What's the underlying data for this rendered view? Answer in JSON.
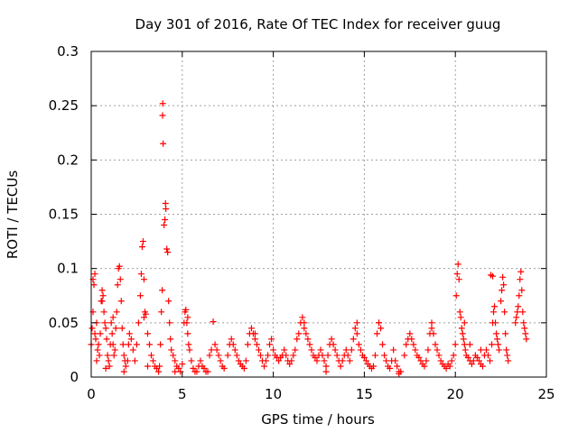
{
  "chart_data": {
    "type": "scatter",
    "title": "Day 301 of 2016, Rate Of TEC Index for receiver guug",
    "xlabel": "GPS time / hours",
    "ylabel": "ROTI / TECUs",
    "xlim": [
      0,
      25
    ],
    "ylim": [
      0,
      0.3
    ],
    "x_ticks": [
      0,
      5,
      10,
      15,
      20,
      25
    ],
    "x_tick_labels": [
      "0",
      "5",
      "10",
      "15",
      "20",
      "25"
    ],
    "y_ticks": [
      0,
      0.05,
      0.1,
      0.15,
      0.2,
      0.25,
      0.3
    ],
    "y_tick_labels": [
      "0",
      "0.05",
      "0.1",
      "0.15",
      "0.2",
      "0.25",
      "0.3"
    ],
    "grid": true,
    "marker": "+",
    "colors": {
      "marker": "#ff0000",
      "grid": "#a0a0a0",
      "axis": "#000000"
    },
    "series": [
      {
        "name": "ROTI",
        "points": [
          [
            0.0,
            0.03
          ],
          [
            0.05,
            0.045
          ],
          [
            0.1,
            0.06
          ],
          [
            0.1,
            0.09
          ],
          [
            0.15,
            0.085
          ],
          [
            0.2,
            0.095
          ],
          [
            0.2,
            0.04
          ],
          [
            0.25,
            0.035
          ],
          [
            0.3,
            0.05
          ],
          [
            0.35,
            0.025
          ],
          [
            0.4,
            0.03
          ],
          [
            0.45,
            0.02
          ],
          [
            0.5,
            0.04
          ],
          [
            0.55,
            0.07
          ],
          [
            0.6,
            0.08
          ],
          [
            0.65,
            0.075
          ],
          [
            0.7,
            0.06
          ],
          [
            0.75,
            0.05
          ],
          [
            0.8,
            0.045
          ],
          [
            0.85,
            0.035
          ],
          [
            0.9,
            0.02
          ],
          [
            0.95,
            0.015
          ],
          [
            1.0,
            0.01
          ],
          [
            1.05,
            0.03
          ],
          [
            1.1,
            0.05
          ],
          [
            1.15,
            0.04
          ],
          [
            1.2,
            0.03
          ],
          [
            1.25,
            0.02
          ],
          [
            1.3,
            0.025
          ],
          [
            1.35,
            0.045
          ],
          [
            1.4,
            0.06
          ],
          [
            1.45,
            0.085
          ],
          [
            1.5,
            0.1
          ],
          [
            1.55,
            0.102
          ],
          [
            1.6,
            0.09
          ],
          [
            1.65,
            0.07
          ],
          [
            1.7,
            0.045
          ],
          [
            1.75,
            0.03
          ],
          [
            1.8,
            0.02
          ],
          [
            1.85,
            0.015
          ],
          [
            1.9,
            0.01
          ],
          [
            2.0,
            0.015
          ],
          [
            2.05,
            0.03
          ],
          [
            2.1,
            0.04
          ],
          [
            2.2,
            0.035
          ],
          [
            2.3,
            0.025
          ],
          [
            2.4,
            0.015
          ],
          [
            2.5,
            0.03
          ],
          [
            2.6,
            0.05
          ],
          [
            2.7,
            0.075
          ],
          [
            2.75,
            0.095
          ],
          [
            2.8,
            0.12
          ],
          [
            2.85,
            0.125
          ],
          [
            2.9,
            0.09
          ],
          [
            2.95,
            0.06
          ],
          [
            3.0,
            0.058
          ],
          [
            3.1,
            0.04
          ],
          [
            3.2,
            0.03
          ],
          [
            3.3,
            0.02
          ],
          [
            3.4,
            0.015
          ],
          [
            3.5,
            0.01
          ],
          [
            3.6,
            0.008
          ],
          [
            3.7,
            0.005
          ],
          [
            3.75,
            0.01
          ],
          [
            3.8,
            0.03
          ],
          [
            3.85,
            0.06
          ],
          [
            3.9,
            0.08
          ],
          [
            3.92,
            0.241
          ],
          [
            3.93,
            0.252
          ],
          [
            3.95,
            0.215
          ],
          [
            4.0,
            0.14
          ],
          [
            4.05,
            0.145
          ],
          [
            4.08,
            0.16
          ],
          [
            4.1,
            0.155
          ],
          [
            4.15,
            0.118
          ],
          [
            4.2,
            0.115
          ],
          [
            4.25,
            0.07
          ],
          [
            4.3,
            0.05
          ],
          [
            4.35,
            0.035
          ],
          [
            4.4,
            0.025
          ],
          [
            4.5,
            0.02
          ],
          [
            4.6,
            0.015
          ],
          [
            4.7,
            0.01
          ],
          [
            4.8,
            0.008
          ],
          [
            4.9,
            0.005
          ],
          [
            5.0,
            0.012
          ],
          [
            5.1,
            0.05
          ],
          [
            5.15,
            0.06
          ],
          [
            5.2,
            0.062
          ],
          [
            5.25,
            0.05
          ],
          [
            5.3,
            0.04
          ],
          [
            5.35,
            0.03
          ],
          [
            5.4,
            0.025
          ],
          [
            5.5,
            0.015
          ],
          [
            5.6,
            0.008
          ],
          [
            5.7,
            0.005
          ],
          [
            5.8,
            0.005
          ],
          [
            5.9,
            0.01
          ],
          [
            6.0,
            0.015
          ],
          [
            6.1,
            0.01
          ],
          [
            6.2,
            0.008
          ],
          [
            6.3,
            0.005
          ],
          [
            6.5,
            0.02
          ],
          [
            6.6,
            0.025
          ],
          [
            6.7,
            0.051
          ],
          [
            6.8,
            0.03
          ],
          [
            6.9,
            0.025
          ],
          [
            7.0,
            0.02
          ],
          [
            7.1,
            0.015
          ],
          [
            7.2,
            0.01
          ],
          [
            7.3,
            0.008
          ],
          [
            7.5,
            0.02
          ],
          [
            7.6,
            0.03
          ],
          [
            7.7,
            0.035
          ],
          [
            7.8,
            0.03
          ],
          [
            7.9,
            0.025
          ],
          [
            8.0,
            0.02
          ],
          [
            8.1,
            0.015
          ],
          [
            8.2,
            0.012
          ],
          [
            8.3,
            0.01
          ],
          [
            8.4,
            0.008
          ],
          [
            8.5,
            0.015
          ],
          [
            8.6,
            0.03
          ],
          [
            8.7,
            0.04
          ],
          [
            8.8,
            0.045
          ],
          [
            8.9,
            0.04
          ],
          [
            9.0,
            0.035
          ],
          [
            9.1,
            0.03
          ],
          [
            9.2,
            0.025
          ],
          [
            9.3,
            0.02
          ],
          [
            9.4,
            0.015
          ],
          [
            9.5,
            0.01
          ],
          [
            9.6,
            0.015
          ],
          [
            9.7,
            0.02
          ],
          [
            9.8,
            0.03
          ],
          [
            9.9,
            0.035
          ],
          [
            10.0,
            0.025
          ],
          [
            10.1,
            0.02
          ],
          [
            10.2,
            0.018
          ],
          [
            10.3,
            0.015
          ],
          [
            10.4,
            0.018
          ],
          [
            10.5,
            0.02
          ],
          [
            10.6,
            0.025
          ],
          [
            10.7,
            0.02
          ],
          [
            10.8,
            0.015
          ],
          [
            10.9,
            0.012
          ],
          [
            11.0,
            0.015
          ],
          [
            11.1,
            0.02
          ],
          [
            11.2,
            0.025
          ],
          [
            11.3,
            0.035
          ],
          [
            11.4,
            0.04
          ],
          [
            11.5,
            0.05
          ],
          [
            11.6,
            0.055
          ],
          [
            11.7,
            0.045
          ],
          [
            11.8,
            0.04
          ],
          [
            11.9,
            0.035
          ],
          [
            12.0,
            0.03
          ],
          [
            12.1,
            0.025
          ],
          [
            12.2,
            0.02
          ],
          [
            12.3,
            0.018
          ],
          [
            12.4,
            0.015
          ],
          [
            12.5,
            0.02
          ],
          [
            12.6,
            0.025
          ],
          [
            12.7,
            0.02
          ],
          [
            12.8,
            0.015
          ],
          [
            12.9,
            0.01
          ],
          [
            13.0,
            0.02
          ],
          [
            13.1,
            0.03
          ],
          [
            13.2,
            0.035
          ],
          [
            13.3,
            0.03
          ],
          [
            13.4,
            0.025
          ],
          [
            13.5,
            0.02
          ],
          [
            13.6,
            0.015
          ],
          [
            13.7,
            0.01
          ],
          [
            13.8,
            0.015
          ],
          [
            13.9,
            0.02
          ],
          [
            14.0,
            0.025
          ],
          [
            14.1,
            0.02
          ],
          [
            14.2,
            0.015
          ],
          [
            14.3,
            0.025
          ],
          [
            14.4,
            0.035
          ],
          [
            14.5,
            0.045
          ],
          [
            14.6,
            0.04
          ],
          [
            14.7,
            0.03
          ],
          [
            14.8,
            0.025
          ],
          [
            14.9,
            0.02
          ],
          [
            15.0,
            0.018
          ],
          [
            15.1,
            0.015
          ],
          [
            15.2,
            0.012
          ],
          [
            15.3,
            0.01
          ],
          [
            15.4,
            0.008
          ],
          [
            15.5,
            0.01
          ],
          [
            15.6,
            0.02
          ],
          [
            15.7,
            0.04
          ],
          [
            15.8,
            0.05
          ],
          [
            15.9,
            0.045
          ],
          [
            16.0,
            0.03
          ],
          [
            16.1,
            0.02
          ],
          [
            16.2,
            0.015
          ],
          [
            16.3,
            0.01
          ],
          [
            16.4,
            0.008
          ],
          [
            16.5,
            0.015
          ],
          [
            16.6,
            0.025
          ],
          [
            16.7,
            0.015
          ],
          [
            16.8,
            0.01
          ],
          [
            16.9,
            0.005
          ],
          [
            17.0,
            0.005
          ],
          [
            17.2,
            0.02
          ],
          [
            17.3,
            0.03
          ],
          [
            17.4,
            0.035
          ],
          [
            17.5,
            0.04
          ],
          [
            17.6,
            0.035
          ],
          [
            17.7,
            0.03
          ],
          [
            17.8,
            0.025
          ],
          [
            17.9,
            0.02
          ],
          [
            18.0,
            0.018
          ],
          [
            18.1,
            0.015
          ],
          [
            18.2,
            0.012
          ],
          [
            18.3,
            0.01
          ],
          [
            18.4,
            0.015
          ],
          [
            18.5,
            0.025
          ],
          [
            18.6,
            0.04
          ],
          [
            18.7,
            0.05
          ],
          [
            18.8,
            0.04
          ],
          [
            18.9,
            0.03
          ],
          [
            19.0,
            0.025
          ],
          [
            19.1,
            0.02
          ],
          [
            19.2,
            0.015
          ],
          [
            19.3,
            0.012
          ],
          [
            19.4,
            0.01
          ],
          [
            19.5,
            0.008
          ],
          [
            19.6,
            0.012
          ],
          [
            19.7,
            0.01
          ],
          [
            19.8,
            0.015
          ],
          [
            19.9,
            0.02
          ],
          [
            20.0,
            0.03
          ],
          [
            20.05,
            0.075
          ],
          [
            20.1,
            0.095
          ],
          [
            20.15,
            0.104
          ],
          [
            20.2,
            0.09
          ],
          [
            20.25,
            0.06
          ],
          [
            20.3,
            0.055
          ],
          [
            20.35,
            0.045
          ],
          [
            20.4,
            0.04
          ],
          [
            20.45,
            0.035
          ],
          [
            20.5,
            0.03
          ],
          [
            20.55,
            0.025
          ],
          [
            20.6,
            0.02
          ],
          [
            20.7,
            0.018
          ],
          [
            20.8,
            0.015
          ],
          [
            20.9,
            0.012
          ],
          [
            21.0,
            0.015
          ],
          [
            21.1,
            0.02
          ],
          [
            21.2,
            0.018
          ],
          [
            21.3,
            0.015
          ],
          [
            21.4,
            0.012
          ],
          [
            21.5,
            0.01
          ],
          [
            21.6,
            0.02
          ],
          [
            21.7,
            0.025
          ],
          [
            21.8,
            0.02
          ],
          [
            21.9,
            0.015
          ],
          [
            22.0,
            0.03
          ],
          [
            22.05,
            0.05
          ],
          [
            22.1,
            0.06
          ],
          [
            22.15,
            0.065
          ],
          [
            22.2,
            0.05
          ],
          [
            22.25,
            0.04
          ],
          [
            22.3,
            0.035
          ],
          [
            22.35,
            0.03
          ],
          [
            22.4,
            0.025
          ],
          [
            22.5,
            0.07
          ],
          [
            22.55,
            0.08
          ],
          [
            22.6,
            0.092
          ],
          [
            22.65,
            0.085
          ],
          [
            22.7,
            0.06
          ],
          [
            22.75,
            0.04
          ],
          [
            22.8,
            0.025
          ],
          [
            22.85,
            0.02
          ],
          [
            22.9,
            0.015
          ],
          [
            23.3,
            0.05
          ],
          [
            23.35,
            0.055
          ],
          [
            23.4,
            0.06
          ],
          [
            23.45,
            0.065
          ],
          [
            23.5,
            0.075
          ],
          [
            23.55,
            0.09
          ],
          [
            23.6,
            0.097
          ],
          [
            23.65,
            0.08
          ],
          [
            23.7,
            0.06
          ],
          [
            23.75,
            0.05
          ],
          [
            23.8,
            0.045
          ],
          [
            23.85,
            0.04
          ],
          [
            23.9,
            0.035
          ],
          [
            21.95,
            0.094
          ],
          [
            22.05,
            0.093
          ],
          [
            1.2,
            0.055
          ],
          [
            0.6,
            0.07
          ],
          [
            2.9,
            0.055
          ],
          [
            5.3,
            0.055
          ],
          [
            9.0,
            0.04
          ],
          [
            11.7,
            0.05
          ],
          [
            14.6,
            0.05
          ],
          [
            15.8,
            0.05
          ],
          [
            18.7,
            0.045
          ],
          [
            20.5,
            0.05
          ],
          [
            20.8,
            0.03
          ],
          [
            21.4,
            0.025
          ],
          [
            0.3,
            0.015
          ],
          [
            0.8,
            0.008
          ],
          [
            1.8,
            0.005
          ],
          [
            3.1,
            0.01
          ],
          [
            4.6,
            0.005
          ],
          [
            6.4,
            0.005
          ],
          [
            12.9,
            0.005
          ],
          [
            16.9,
            0.003
          ]
        ]
      }
    ]
  }
}
